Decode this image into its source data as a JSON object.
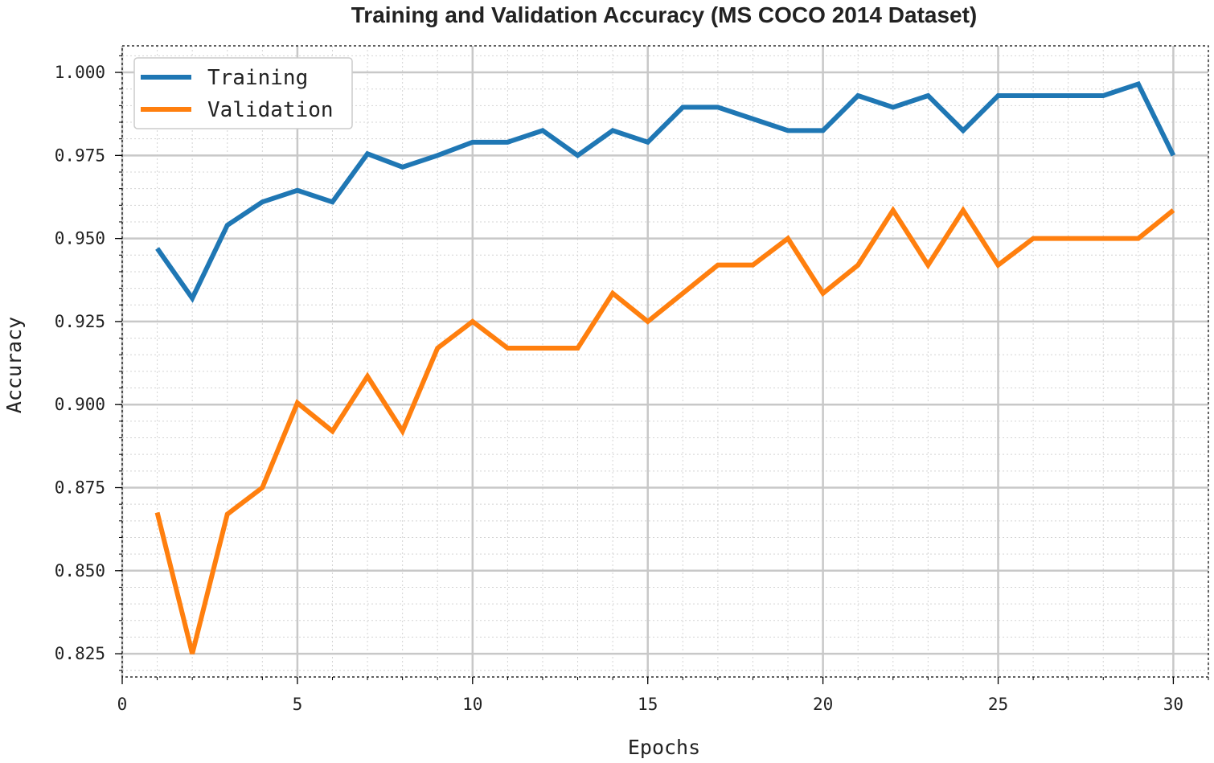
{
  "chart_data": {
    "type": "line",
    "title": "Training and Validation Accuracy (MS COCO 2014 Dataset)",
    "xlabel": "Epochs",
    "ylabel": "Accuracy",
    "xlim": [
      0,
      31
    ],
    "ylim": [
      0.818,
      1.008
    ],
    "x_ticks": [
      0,
      5,
      10,
      15,
      20,
      25,
      30
    ],
    "y_ticks": [
      0.825,
      0.85,
      0.875,
      0.9,
      0.925,
      0.95,
      0.975,
      1.0
    ],
    "y_tick_labels": [
      "0.825",
      "0.850",
      "0.875",
      "0.900",
      "0.925",
      "0.950",
      "0.975",
      "1.000"
    ],
    "grid": true,
    "legend_position": "top-left",
    "x": [
      1,
      2,
      3,
      4,
      5,
      6,
      7,
      8,
      9,
      10,
      11,
      12,
      13,
      14,
      15,
      16,
      17,
      18,
      19,
      20,
      21,
      22,
      23,
      24,
      25,
      26,
      27,
      28,
      29,
      30
    ],
    "series": [
      {
        "name": "Training",
        "color": "#1f77b4",
        "values": [
          0.947,
          0.932,
          0.954,
          0.961,
          0.9645,
          0.961,
          0.9755,
          0.9715,
          0.975,
          0.979,
          0.979,
          0.9825,
          0.975,
          0.9825,
          0.979,
          0.9895,
          0.9895,
          0.986,
          0.9825,
          0.9825,
          0.993,
          0.9895,
          0.993,
          0.9825,
          0.993,
          0.993,
          0.993,
          0.993,
          0.9965,
          0.975
        ]
      },
      {
        "name": "Validation",
        "color": "#ff7f0e",
        "values": [
          0.8675,
          0.825,
          0.867,
          0.875,
          0.9005,
          0.892,
          0.9085,
          0.892,
          0.917,
          0.925,
          0.917,
          0.917,
          0.917,
          0.9335,
          0.925,
          0.9335,
          0.942,
          0.942,
          0.95,
          0.9335,
          0.942,
          0.9585,
          0.942,
          0.9585,
          0.942,
          0.95,
          0.95,
          0.95,
          0.95,
          0.9585
        ]
      }
    ]
  }
}
